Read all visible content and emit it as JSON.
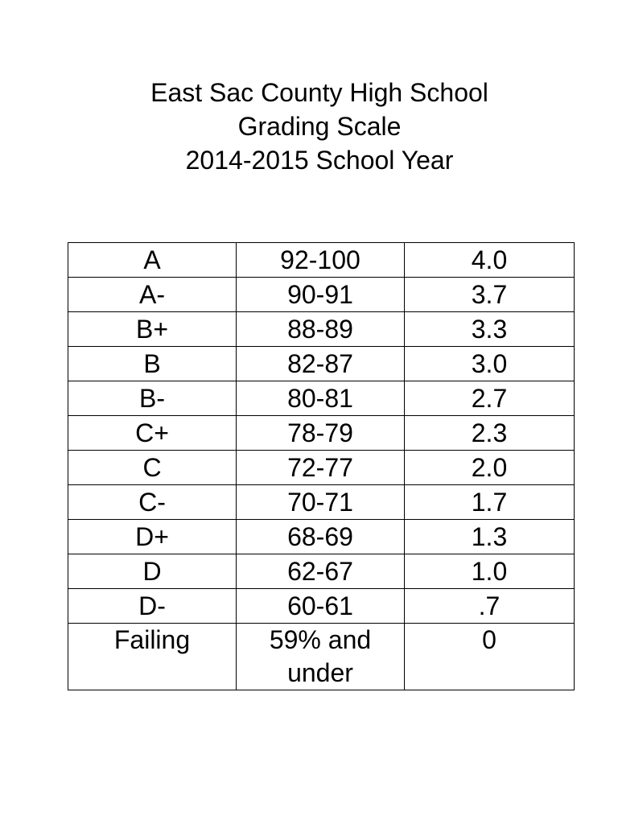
{
  "title": {
    "line1": "East Sac County High School",
    "line2": "Grading Scale",
    "line3": "2014-2015 School Year"
  },
  "grades": [
    {
      "grade": "A",
      "range": "92-100",
      "gpa": "4.0"
    },
    {
      "grade": "A-",
      "range": "90-91",
      "gpa": "3.7"
    },
    {
      "grade": "B+",
      "range": "88-89",
      "gpa": "3.3"
    },
    {
      "grade": "B",
      "range": "82-87",
      "gpa": "3.0"
    },
    {
      "grade": "B-",
      "range": "80-81",
      "gpa": "2.7"
    },
    {
      "grade": "C+",
      "range": "78-79",
      "gpa": "2.3"
    },
    {
      "grade": "C",
      "range": "72-77",
      "gpa": "2.0"
    },
    {
      "grade": "C-",
      "range": "70-71",
      "gpa": "1.7"
    },
    {
      "grade": "D+",
      "range": "68-69",
      "gpa": "1.3"
    },
    {
      "grade": "D",
      "range": "62-67",
      "gpa": "1.0"
    },
    {
      "grade": "D-",
      "range": "60-61",
      "gpa": ".7"
    },
    {
      "grade": "Failing",
      "range": "59% and under",
      "gpa": "0"
    }
  ]
}
